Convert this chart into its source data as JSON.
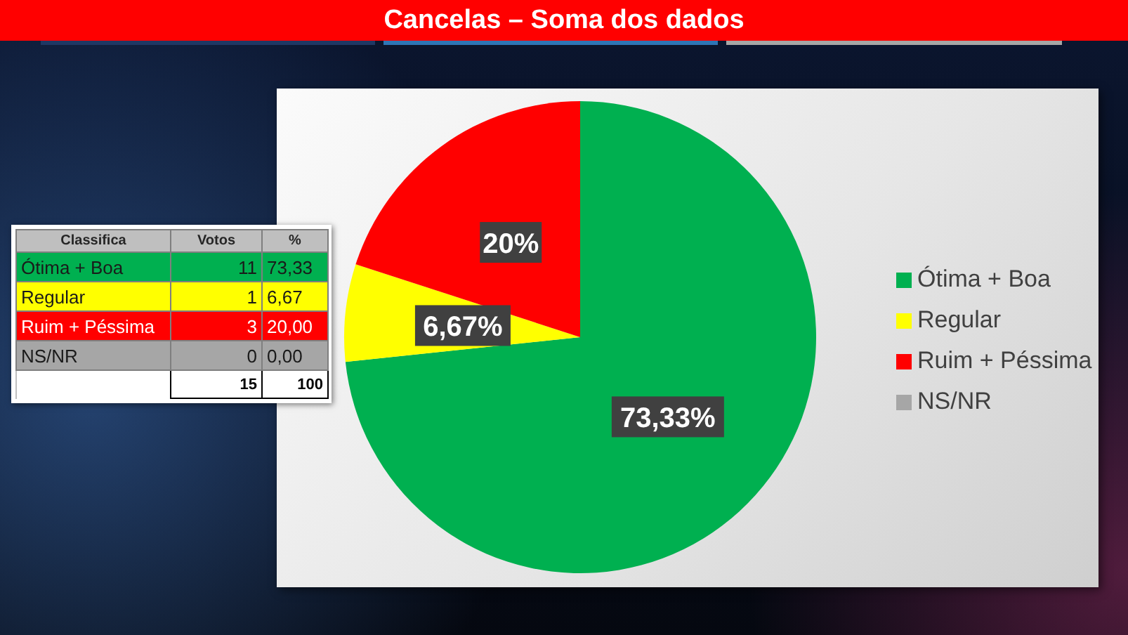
{
  "chart_data": [
    {
      "type": "pie",
      "title": "Cancelas – Soma dos dados",
      "categories": [
        "Ótima + Boa",
        "Regular",
        "Ruim + Péssima",
        "NS/NR"
      ],
      "values": [
        73.33,
        6.67,
        20,
        0
      ],
      "colors": [
        "#00b050",
        "#ffff00",
        "#ff0000",
        "#a6a6a6"
      ],
      "value_labels": [
        "73,33%",
        "6,67%",
        "20%",
        null
      ],
      "legend": "right"
    },
    {
      "type": "other",
      "xlabel": "Classifica",
      "categories": [
        "Ótima + Boa",
        "Regular",
        "Ruim + Péssima",
        "NS/NR"
      ],
      "colors": [
        "#00b050",
        "#ffff00",
        "#ff0000",
        "#a6a6a6"
      ],
      "series": [
        {
          "name": "Votos",
          "values": [
            11,
            1,
            3,
            0
          ],
          "data_labels": true,
          "colors": [
            "#00b050",
            "#ffff00",
            "#ff0000",
            "#a6a6a6"
          ]
        },
        {
          "name": "%",
          "values": [
            73.33,
            6.67,
            20,
            0
          ],
          "value_labels": [
            "73,33",
            "6,67",
            "20,00",
            "0,00"
          ],
          "colors": [
            "#00b050",
            "#ffff00",
            "#ff0000",
            "#a6a6a6"
          ]
        }
      ],
      "totals": [
        "15",
        "100"
      ]
    }
  ]
}
